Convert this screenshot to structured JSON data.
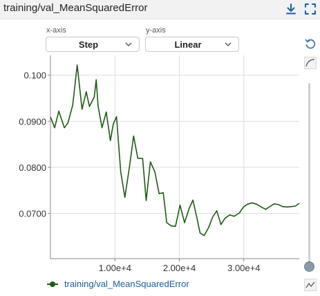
{
  "card": {
    "title": "training/val_MeanSquaredError",
    "download_icon": "download-icon",
    "fullscreen_icon": "fullscreen-icon"
  },
  "controls": {
    "xaxis_label": "x-axis",
    "xaxis_value": "Step",
    "yaxis_label": "y-axis",
    "yaxis_value": "Linear"
  },
  "side_tools": {
    "reset_icon": "reset-zoom-icon",
    "smoothing_icon": "smoothing-curve-icon",
    "outlier_icon": "line-chart-icon"
  },
  "legend": {
    "label": "training/val_MeanSquaredError"
  },
  "colors": {
    "series": "#1e5a14",
    "accent": "#1a5ea0"
  },
  "chart_data": {
    "type": "line",
    "title": "",
    "xlabel": "",
    "ylabel": "",
    "xlim": [
      0,
      38600
    ],
    "ylim": [
      0.0602,
      0.1043
    ],
    "x_ticks": [
      10000,
      20000,
      30000
    ],
    "x_tick_labels": [
      "1.00e+4",
      "2.00e+4",
      "3.00e+4"
    ],
    "y_ticks": [
      0.07,
      0.08,
      0.09,
      0.1
    ],
    "y_tick_labels": [
      "0.0700",
      "0.0800",
      "0.0900",
      "0.100"
    ],
    "grid": true,
    "series": [
      {
        "name": "training/val_MeanSquaredError",
        "x": [
          0,
          650,
          1300,
          2150,
          2700,
          3450,
          4150,
          4900,
          5550,
          6050,
          6800,
          7100,
          7400,
          8000,
          8650,
          9300,
          9750,
          10250,
          10900,
          11550,
          12250,
          12900,
          13550,
          14300,
          14850,
          15500,
          16200,
          16850,
          17500,
          18050,
          18750,
          19400,
          20100,
          20800,
          21500,
          22100,
          22700,
          23200,
          23850,
          24550,
          25150,
          25800,
          26450,
          27100,
          27850,
          28500,
          29300,
          29950,
          30550,
          31300,
          32000,
          32700,
          33400,
          34150,
          34700,
          35400,
          36000,
          36700,
          37400,
          38000,
          38600
        ],
        "values": [
          0.0909,
          0.0886,
          0.0922,
          0.0886,
          0.0896,
          0.0935,
          0.1022,
          0.0926,
          0.0964,
          0.0932,
          0.0953,
          0.099,
          0.0932,
          0.0886,
          0.092,
          0.0858,
          0.0894,
          0.091,
          0.079,
          0.0735,
          0.08,
          0.0868,
          0.082,
          0.0819,
          0.0728,
          0.0812,
          0.079,
          0.0743,
          0.0745,
          0.068,
          0.0673,
          0.0672,
          0.0718,
          0.068,
          0.071,
          0.0729,
          0.0692,
          0.0658,
          0.0652,
          0.067,
          0.0692,
          0.0706,
          0.0676,
          0.069,
          0.0697,
          0.0694,
          0.0701,
          0.0714,
          0.072,
          0.0723,
          0.072,
          0.0714,
          0.0709,
          0.0716,
          0.0721,
          0.0719,
          0.0715,
          0.0714,
          0.0715,
          0.0716,
          0.0722
        ]
      }
    ]
  }
}
